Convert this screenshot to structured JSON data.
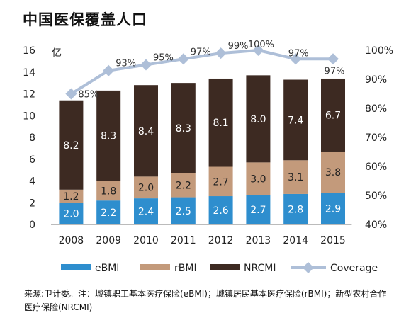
{
  "title": "中国医保覆盖人口",
  "source_note": "来源:卫计委。注：城镇职工基本医疗保险(eBMI)；城镇居民基本医疗保险(rBMI)；新型农村合作医疗保险(NRCMI)",
  "chart_data": {
    "type": "bar",
    "stacked": true,
    "categories": [
      "2008",
      "2009",
      "2010",
      "2011",
      "2012",
      "2013",
      "2014",
      "2015"
    ],
    "series": [
      {
        "name": "eBMI",
        "values": [
          2.0,
          2.2,
          2.4,
          2.5,
          2.6,
          2.7,
          2.8,
          2.9
        ],
        "color": "#2e8ece",
        "label_color": "#ffffff"
      },
      {
        "name": "rBMI",
        "values": [
          1.2,
          1.8,
          2.0,
          2.2,
          2.7,
          3.0,
          3.1,
          3.8
        ],
        "color": "#c39a7b",
        "label_color": "#222222"
      },
      {
        "name": "NRCMI",
        "values": [
          8.2,
          8.3,
          8.4,
          8.3,
          8.1,
          8.0,
          7.4,
          6.7
        ],
        "color": "#3d2a22",
        "label_color": "#ffffff"
      }
    ],
    "line_series": {
      "name": "Coverage",
      "values": [
        85,
        93,
        95,
        97,
        99,
        100,
        97,
        97
      ],
      "labels": [
        "85%",
        "93%",
        "95%",
        "97%",
        "99%",
        "100%",
        "97%",
        "97%"
      ],
      "color": "#aebfd8"
    },
    "y_axis_left": {
      "unit_label": "亿",
      "ylim": [
        0,
        16
      ],
      "ticks": [
        "0",
        "2",
        "4",
        "6",
        "8",
        "10",
        "12",
        "14",
        "16"
      ]
    },
    "y_axis_right": {
      "ylim": [
        40,
        100
      ],
      "ticks": [
        "40%",
        "50%",
        "60%",
        "70%",
        "80%",
        "90%",
        "100%"
      ]
    },
    "legend_position": "bottom",
    "grid": false
  }
}
